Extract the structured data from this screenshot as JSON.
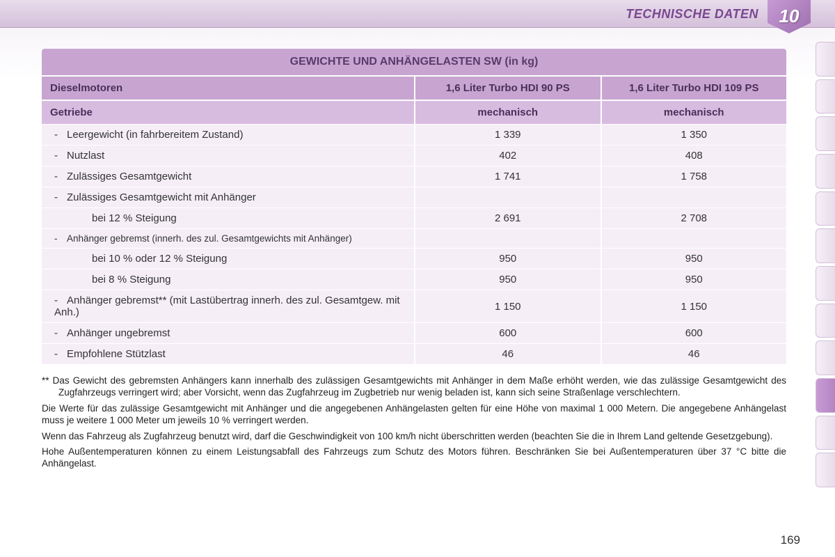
{
  "header": {
    "title": "TECHNISCHE DATEN",
    "chapter_number": "10"
  },
  "page_number": "169",
  "colors": {
    "header_gradient_top": "#e8dceb",
    "header_gradient_bottom": "#d4c0da",
    "title_text": "#7a4790",
    "badge_gradient_a": "#c89bd4",
    "badge_gradient_b": "#9d6fb0",
    "table_header_bg": "#c8a5d1",
    "table_subheader_bg": "#d8bce0",
    "table_body_bg": "#f5eef7",
    "table_text": "#4a2f5a",
    "body_text": "#333333"
  },
  "table": {
    "title": "GEWICHTE UND ANHÄNGELASTEN SW (in kg)",
    "header1": {
      "label": "Dieselmotoren",
      "col1": "1,6 Liter Turbo HDI 90 PS",
      "col2": "1,6 Liter Turbo HDI 109 PS"
    },
    "header2": {
      "label": "Getriebe",
      "col1": "mechanisch",
      "col2": "mechanisch"
    },
    "rows": [
      {
        "bullet": "-",
        "label": "Leergewicht (in fahrbereitem Zustand)",
        "v1": "1 339",
        "v2": "1 350",
        "indent": false
      },
      {
        "bullet": "-",
        "label": "Nutzlast",
        "v1": "402",
        "v2": "408",
        "indent": false
      },
      {
        "bullet": "-",
        "label": "Zulässiges Gesamtgewicht",
        "v1": "1 741",
        "v2": "1 758",
        "indent": false
      },
      {
        "bullet": "-",
        "label": "Zulässiges Gesamtgewicht mit Anhänger",
        "v1": "",
        "v2": "",
        "indent": false
      },
      {
        "bullet": "",
        "label": "bei 12 % Steigung",
        "v1": "2 691",
        "v2": "2 708",
        "indent": true
      },
      {
        "bullet": "-",
        "label": "Anhänger gebremst (innerh. des zul. Gesamtgewichts mit Anhänger)",
        "v1": "",
        "v2": "",
        "indent": false,
        "compact": true
      },
      {
        "bullet": "",
        "label": "bei 10 % oder 12 % Steigung",
        "v1": "950",
        "v2": "950",
        "indent": true
      },
      {
        "bullet": "",
        "label": "bei 8 % Steigung",
        "v1": "950",
        "v2": "950",
        "indent": true
      },
      {
        "bullet": "-",
        "label": "Anhänger gebremst** (mit Lastübertrag innerh. des zul. Gesamtgew. mit Anh.)",
        "v1": "1 150",
        "v2": "1 150",
        "indent": false
      },
      {
        "bullet": "-",
        "label": "Anhänger ungebremst",
        "v1": "600",
        "v2": "600",
        "indent": false
      },
      {
        "bullet": "-",
        "label": "Empfohlene Stützlast",
        "v1": "46",
        "v2": "46",
        "indent": false
      }
    ]
  },
  "footnotes": {
    "star_note": "** Das Gewicht des gebremsten Anhängers kann innerhalb des zulässigen Gesamtgewichts mit Anhänger in dem Maße erhöht werden, wie das zulässige Gesamtgewicht des Zugfahrzeugs verringert wird; aber Vorsicht, wenn das Zugfahrzeug im Zugbetrieb nur wenig beladen ist, kann sich seine Straßenlage verschlechtern.",
    "p1": "Die Werte für das zulässige Gesamtgewicht mit Anhänger und die angegebenen Anhängelasten gelten für eine Höhe von maximal 1 000 Metern. Die angegebene Anhängelast muss je weitere 1 000 Meter um jeweils 10 % verringert werden.",
    "p2": "Wenn das Fahrzeug als Zugfahrzeug benutzt wird, darf die Geschwindigkeit von 100 km/h nicht überschritten werden (beachten Sie die in Ihrem Land geltende Gesetzgebung).",
    "p3": "Hohe Außentemperaturen können zu einem Leistungsabfall des Fahrzeugs zum Schutz des Motors führen. Beschränken Sie bei Außentemperaturen über 37 °C bitte die Anhängelast."
  },
  "side_tabs": {
    "count": 12,
    "active_index": 9
  }
}
